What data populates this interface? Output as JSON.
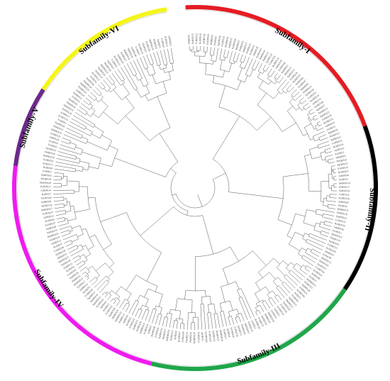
{
  "figure": {
    "type": "circular phylogenetic tree",
    "subfamilies": [
      {
        "label": "Subfamily-I",
        "color": "#e51c23",
        "start_deg": -3,
        "end_deg": 70
      },
      {
        "label": "Subfamily-II",
        "color": "#000000",
        "start_deg": 70,
        "end_deg": 124
      },
      {
        "label": "Subfamily-III",
        "color": "#1fa64a",
        "start_deg": 124,
        "end_deg": 194
      },
      {
        "label": "Subfamily-IV",
        "color": "#ee1bee",
        "start_deg": 194,
        "end_deg": 277
      },
      {
        "label": "Subfamily-V",
        "color": "#6a2a8a",
        "start_deg": 277,
        "end_deg": 303
      },
      {
        "label": "Subfamily-VI",
        "color": "#f5f51a",
        "start_deg": 303,
        "end_deg": 351
      }
    ],
    "leaf_prefixes": [
      "MdHBX",
      "PbHBX",
      "PpHBX",
      "FvHBX",
      "RcHBX",
      "AtHBX",
      "PyHBX"
    ]
  }
}
